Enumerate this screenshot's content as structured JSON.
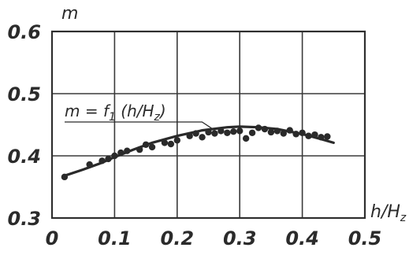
{
  "chart_data": {
    "type": "scatter",
    "x_label": "h/H",
    "x_label_sub": "z",
    "y_label": "m",
    "xlim": [
      0,
      0.5
    ],
    "ylim": [
      0.3,
      0.6
    ],
    "x_ticks": [
      {
        "value": 0,
        "label": "0"
      },
      {
        "value": 0.1,
        "label": "0.1"
      },
      {
        "value": 0.2,
        "label": "0.2"
      },
      {
        "value": 0.3,
        "label": "0.3"
      },
      {
        "value": 0.4,
        "label": "0.4"
      },
      {
        "value": 0.5,
        "label": "0.5"
      }
    ],
    "y_ticks": [
      {
        "value": 0.3,
        "label": "0.3"
      },
      {
        "value": 0.4,
        "label": "0.4"
      },
      {
        "value": 0.5,
        "label": "0.5"
      },
      {
        "value": 0.6,
        "label": "0.6"
      }
    ],
    "grid": true,
    "annotation": {
      "prefix": "m = f",
      "sub1": "1",
      "mid": " (h/H",
      "subz": "z",
      "suffix": ")",
      "points_to": {
        "x": 0.26,
        "y": 0.436
      }
    },
    "fit_curve": {
      "x": [
        0.02,
        0.05,
        0.08,
        0.1,
        0.13,
        0.16,
        0.2,
        0.24,
        0.28,
        0.3,
        0.33,
        0.36,
        0.4,
        0.43,
        0.45
      ],
      "y": [
        0.368,
        0.378,
        0.389,
        0.398,
        0.41,
        0.421,
        0.432,
        0.441,
        0.446,
        0.447,
        0.446,
        0.443,
        0.435,
        0.427,
        0.421
      ]
    },
    "points": {
      "x": [
        0.02,
        0.06,
        0.08,
        0.09,
        0.1,
        0.11,
        0.12,
        0.14,
        0.15,
        0.16,
        0.18,
        0.19,
        0.2,
        0.22,
        0.23,
        0.24,
        0.25,
        0.26,
        0.27,
        0.28,
        0.29,
        0.3,
        0.31,
        0.32,
        0.33,
        0.34,
        0.35,
        0.36,
        0.37,
        0.38,
        0.39,
        0.4,
        0.41,
        0.42,
        0.43,
        0.44
      ],
      "y": [
        0.366,
        0.386,
        0.392,
        0.395,
        0.4,
        0.405,
        0.408,
        0.41,
        0.418,
        0.414,
        0.421,
        0.419,
        0.425,
        0.432,
        0.436,
        0.43,
        0.438,
        0.436,
        0.44,
        0.437,
        0.439,
        0.44,
        0.428,
        0.437,
        0.445,
        0.443,
        0.438,
        0.44,
        0.436,
        0.441,
        0.435,
        0.437,
        0.432,
        0.434,
        0.43,
        0.431
      ]
    }
  }
}
